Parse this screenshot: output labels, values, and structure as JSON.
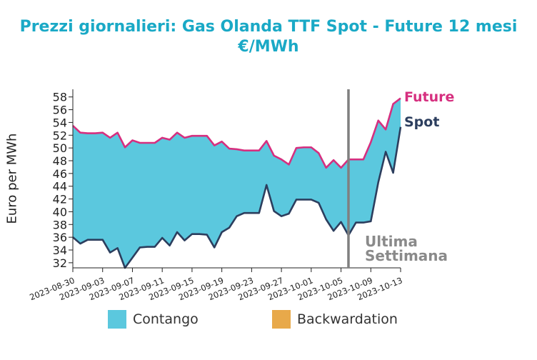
{
  "title_line1": "Prezzi giornalieri: Gas Olanda TTF Spot - Future 12 mesi",
  "title_line2": "€/MWh",
  "chart_data": {
    "type": "area",
    "ylabel": "Euro per MWh",
    "ylim": [
      31.2,
      59.2
    ],
    "yticks": [
      32,
      34,
      36,
      38,
      40,
      42,
      44,
      46,
      48,
      50,
      52,
      54,
      56,
      58
    ],
    "xticks": [
      "2023-08-30",
      "2023-09-03",
      "2023-09-07",
      "2023-09-11",
      "2023-09-15",
      "2023-09-19",
      "2023-09-23",
      "2023-09-27",
      "2023-10-01",
      "2023-10-05",
      "2023-10-09",
      "2023-10-13"
    ],
    "xlim": [
      "2023-08-30",
      "2023-10-13"
    ],
    "marker_date": "2023-10-06",
    "marker_label_1": "Ultima",
    "marker_label_2": "Settimana",
    "series": [
      {
        "name": "Future",
        "color": "#d62f7f",
        "points": [
          [
            "2023-08-30",
            53.5
          ],
          [
            "2023-08-31",
            52.4
          ],
          [
            "2023-09-01",
            52.3
          ],
          [
            "2023-09-02",
            52.3
          ],
          [
            "2023-09-03",
            52.4
          ],
          [
            "2023-09-04",
            51.6
          ],
          [
            "2023-09-05",
            52.4
          ],
          [
            "2023-09-06",
            50.1
          ],
          [
            "2023-09-07",
            51.2
          ],
          [
            "2023-09-08",
            50.8
          ],
          [
            "2023-09-09",
            50.8
          ],
          [
            "2023-09-10",
            50.8
          ],
          [
            "2023-09-11",
            51.6
          ],
          [
            "2023-09-12",
            51.3
          ],
          [
            "2023-09-13",
            52.4
          ],
          [
            "2023-09-14",
            51.6
          ],
          [
            "2023-09-15",
            51.9
          ],
          [
            "2023-09-16",
            51.9
          ],
          [
            "2023-09-17",
            51.9
          ],
          [
            "2023-09-18",
            50.4
          ],
          [
            "2023-09-19",
            51.0
          ],
          [
            "2023-09-20",
            49.9
          ],
          [
            "2023-09-21",
            49.8
          ],
          [
            "2023-09-22",
            49.6
          ],
          [
            "2023-09-23",
            49.6
          ],
          [
            "2023-09-24",
            49.6
          ],
          [
            "2023-09-25",
            51.1
          ],
          [
            "2023-09-26",
            48.8
          ],
          [
            "2023-09-27",
            48.2
          ],
          [
            "2023-09-28",
            47.4
          ],
          [
            "2023-09-29",
            50.0
          ],
          [
            "2023-09-30",
            50.1
          ],
          [
            "2023-10-01",
            50.1
          ],
          [
            "2023-10-02",
            49.2
          ],
          [
            "2023-10-03",
            46.9
          ],
          [
            "2023-10-04",
            48.1
          ],
          [
            "2023-10-05",
            46.9
          ],
          [
            "2023-10-06",
            48.2
          ],
          [
            "2023-10-07",
            48.2
          ],
          [
            "2023-10-08",
            48.2
          ],
          [
            "2023-10-09",
            50.9
          ],
          [
            "2023-10-10",
            54.3
          ],
          [
            "2023-10-11",
            52.9
          ],
          [
            "2023-10-12",
            56.9
          ],
          [
            "2023-10-13",
            57.8
          ]
        ]
      },
      {
        "name": "Spot",
        "color": "#2c3e5e",
        "points": [
          [
            "2023-08-30",
            36.0
          ],
          [
            "2023-08-31",
            35.0
          ],
          [
            "2023-09-01",
            35.6
          ],
          [
            "2023-09-02",
            35.6
          ],
          [
            "2023-09-03",
            35.6
          ],
          [
            "2023-09-04",
            33.6
          ],
          [
            "2023-09-05",
            34.3
          ],
          [
            "2023-09-06",
            31.2
          ],
          [
            "2023-09-07",
            32.8
          ],
          [
            "2023-09-08",
            34.4
          ],
          [
            "2023-09-09",
            34.5
          ],
          [
            "2023-09-10",
            34.5
          ],
          [
            "2023-09-11",
            35.9
          ],
          [
            "2023-09-12",
            34.7
          ],
          [
            "2023-09-13",
            36.8
          ],
          [
            "2023-09-14",
            35.5
          ],
          [
            "2023-09-15",
            36.5
          ],
          [
            "2023-09-16",
            36.5
          ],
          [
            "2023-09-17",
            36.4
          ],
          [
            "2023-09-18",
            34.4
          ],
          [
            "2023-09-19",
            36.8
          ],
          [
            "2023-09-20",
            37.5
          ],
          [
            "2023-09-21",
            39.3
          ],
          [
            "2023-09-22",
            39.8
          ],
          [
            "2023-09-23",
            39.8
          ],
          [
            "2023-09-24",
            39.8
          ],
          [
            "2023-09-25",
            44.2
          ],
          [
            "2023-09-26",
            40.1
          ],
          [
            "2023-09-27",
            39.3
          ],
          [
            "2023-09-28",
            39.7
          ],
          [
            "2023-09-29",
            41.9
          ],
          [
            "2023-09-30",
            41.9
          ],
          [
            "2023-10-01",
            41.9
          ],
          [
            "2023-10-02",
            41.4
          ],
          [
            "2023-10-03",
            38.8
          ],
          [
            "2023-10-04",
            37.0
          ],
          [
            "2023-10-05",
            38.4
          ],
          [
            "2023-10-06",
            36.3
          ],
          [
            "2023-10-07",
            38.3
          ],
          [
            "2023-10-08",
            38.3
          ],
          [
            "2023-10-09",
            38.5
          ],
          [
            "2023-10-10",
            44.6
          ],
          [
            "2023-10-11",
            49.4
          ],
          [
            "2023-10-12",
            46.1
          ],
          [
            "2023-10-13",
            53.3
          ]
        ]
      }
    ],
    "legend": [
      {
        "label": "Contango",
        "color": "#5bc8de"
      },
      {
        "label": "Backwardation",
        "color": "#e8a94a"
      }
    ]
  }
}
